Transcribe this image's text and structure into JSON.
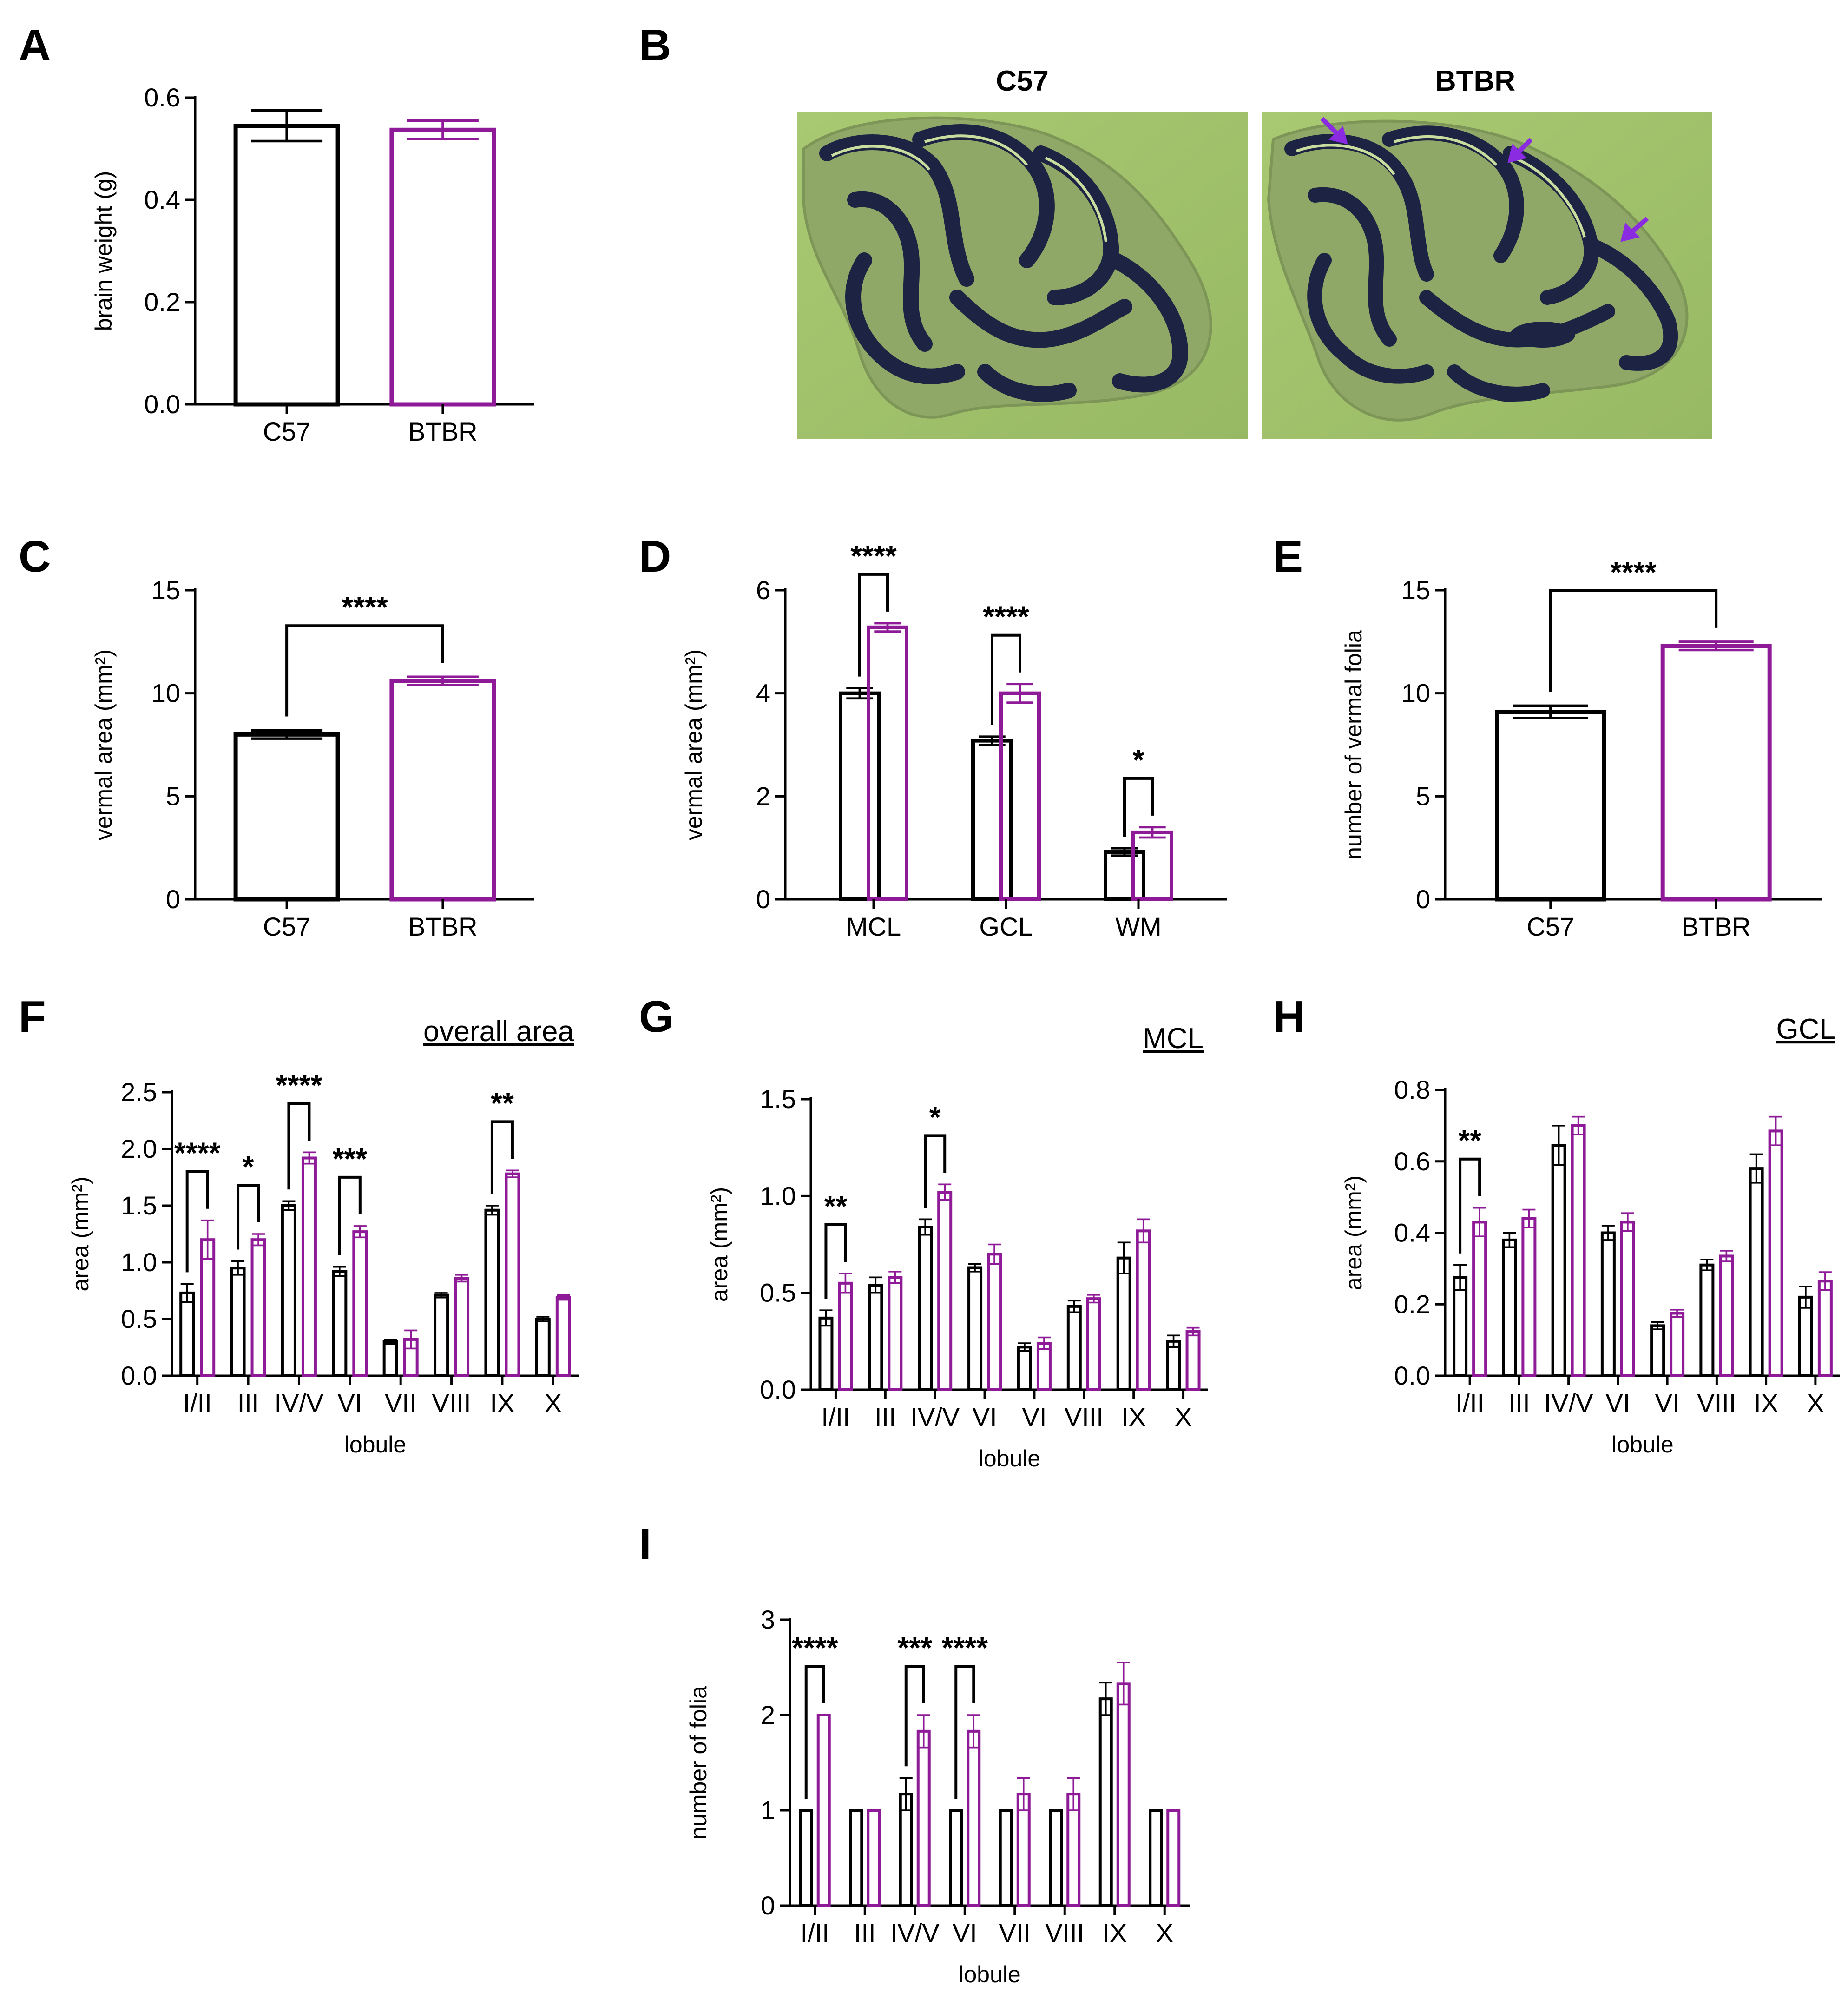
{
  "colors": {
    "c57": "#000000",
    "btbr": "#8e1a97",
    "arrow": "#8a2be2",
    "tissue": "#a4c46e",
    "folia": "#1d2343"
  },
  "panels": {
    "A": {
      "letter": "A"
    },
    "B": {
      "letter": "B",
      "left_title": "C57",
      "right_title": "BTBR"
    },
    "C": {
      "letter": "C"
    },
    "D": {
      "letter": "D"
    },
    "E": {
      "letter": "E"
    },
    "F": {
      "letter": "F"
    },
    "G": {
      "letter": "G"
    },
    "H": {
      "letter": "H"
    },
    "I": {
      "letter": "I"
    }
  },
  "chart_data": [
    {
      "id": "A",
      "type": "bar",
      "categories": [
        "C57",
        "BTBR"
      ],
      "values": [
        0.545,
        0.537
      ],
      "errors": [
        0.03,
        0.018
      ],
      "ylabel": "brain weight (g)",
      "ylim": [
        0,
        0.6
      ],
      "yticks": [
        "0.0",
        "0.2",
        "0.4",
        "0.6"
      ],
      "brackets": []
    },
    {
      "id": "C",
      "type": "bar",
      "categories": [
        "C57",
        "BTBR"
      ],
      "values": [
        8.0,
        10.6
      ],
      "errors": [
        0.2,
        0.2
      ],
      "ylabel": "vermal area (mm²)",
      "ylim": [
        0,
        15
      ],
      "yticks": [
        "0",
        "5",
        "10",
        "15"
      ],
      "brackets": [
        {
          "from": 0,
          "to": 1,
          "label": "****"
        }
      ]
    },
    {
      "id": "D",
      "type": "bar",
      "categories": [
        "MCL",
        "GCL",
        "WM"
      ],
      "series": [
        {
          "values": [
            4.0,
            3.08,
            0.92
          ],
          "errors": [
            0.1,
            0.08,
            0.07
          ]
        },
        {
          "values": [
            5.28,
            4.0,
            1.3
          ],
          "errors": [
            0.08,
            0.18,
            0.1
          ]
        }
      ],
      "ylabel": "vermal area (mm²)",
      "ylim": [
        0,
        6
      ],
      "yticks": [
        "0",
        "2",
        "4",
        "6"
      ],
      "brackets": [
        {
          "cat": 0,
          "label": "****"
        },
        {
          "cat": 1,
          "label": "****"
        },
        {
          "cat": 2,
          "label": "*"
        }
      ]
    },
    {
      "id": "E",
      "type": "bar",
      "categories": [
        "C57",
        "BTBR"
      ],
      "values": [
        9.1,
        12.3
      ],
      "errors": [
        0.3,
        0.2
      ],
      "ylabel": "number of vermal folia",
      "ylim": [
        0,
        15
      ],
      "yticks": [
        "0",
        "5",
        "10",
        "15"
      ],
      "brackets": [
        {
          "from": 0,
          "to": 1,
          "label": "****"
        }
      ]
    },
    {
      "id": "F",
      "type": "bar",
      "title": "overall area",
      "categories": [
        "I/II",
        "III",
        "IV/V",
        "VI",
        "VII",
        "VIII",
        "IX",
        "X"
      ],
      "series": [
        {
          "values": [
            0.73,
            0.95,
            1.5,
            0.92,
            0.3,
            0.71,
            1.46,
            0.5
          ],
          "errors": [
            0.08,
            0.06,
            0.04,
            0.04,
            0.02,
            0.02,
            0.04,
            0.02
          ]
        },
        {
          "values": [
            1.2,
            1.2,
            1.92,
            1.27,
            0.32,
            0.86,
            1.78,
            0.69
          ],
          "errors": [
            0.17,
            0.05,
            0.05,
            0.05,
            0.08,
            0.03,
            0.03,
            0.02
          ]
        }
      ],
      "ylabel": "area (mm²)",
      "xlabel": "lobule",
      "ylim": [
        0,
        2.5
      ],
      "yticks": [
        "0.0",
        "0.5",
        "1.0",
        "1.5",
        "2.0",
        "2.5"
      ],
      "brackets": [
        {
          "cat": 0,
          "label": "****"
        },
        {
          "cat": 1,
          "label": "*"
        },
        {
          "cat": 2,
          "label": "****"
        },
        {
          "cat": 3,
          "label": "***"
        },
        {
          "cat": 6,
          "label": "**"
        }
      ]
    },
    {
      "id": "G",
      "type": "bar",
      "title": "MCL",
      "categories": [
        "I/II",
        "III",
        "IV/V",
        "VI",
        "VI",
        "VIII",
        "IX",
        "X"
      ],
      "series": [
        {
          "values": [
            0.37,
            0.54,
            0.84,
            0.63,
            0.22,
            0.43,
            0.68,
            0.25
          ],
          "errors": [
            0.04,
            0.04,
            0.04,
            0.02,
            0.02,
            0.03,
            0.08,
            0.03
          ]
        },
        {
          "values": [
            0.55,
            0.58,
            1.02,
            0.7,
            0.24,
            0.47,
            0.82,
            0.3
          ],
          "errors": [
            0.05,
            0.03,
            0.04,
            0.05,
            0.03,
            0.02,
            0.06,
            0.02
          ]
        }
      ],
      "ylabel": "area (mm²)",
      "xlabel": "lobule",
      "ylim": [
        0,
        1.5
      ],
      "yticks": [
        "0.0",
        "0.5",
        "1.0",
        "1.5"
      ],
      "brackets": [
        {
          "cat": 0,
          "label": "**"
        },
        {
          "cat": 2,
          "label": "*"
        }
      ]
    },
    {
      "id": "H",
      "type": "bar",
      "title": "GCL",
      "categories": [
        "I/II",
        "III",
        "IV/V",
        "VI",
        "VI",
        "VIII",
        "IX",
        "X"
      ],
      "series": [
        {
          "values": [
            0.275,
            0.38,
            0.645,
            0.4,
            0.14,
            0.31,
            0.58,
            0.22
          ],
          "errors": [
            0.035,
            0.02,
            0.055,
            0.02,
            0.01,
            0.015,
            0.04,
            0.03
          ]
        },
        {
          "values": [
            0.43,
            0.44,
            0.7,
            0.43,
            0.175,
            0.335,
            0.685,
            0.265
          ],
          "errors": [
            0.04,
            0.025,
            0.025,
            0.025,
            0.01,
            0.015,
            0.04,
            0.025
          ]
        }
      ],
      "ylabel": "area (mm²)",
      "xlabel": "lobule",
      "ylim": [
        0,
        0.8
      ],
      "yticks": [
        "0.0",
        "0.2",
        "0.4",
        "0.6",
        "0.8"
      ],
      "brackets": [
        {
          "cat": 0,
          "label": "**"
        }
      ]
    },
    {
      "id": "I",
      "type": "bar",
      "categories": [
        "I/II",
        "III",
        "IV/V",
        "VI",
        "VII",
        "VIII",
        "IX",
        "X"
      ],
      "series": [
        {
          "values": [
            1,
            1,
            1.17,
            1,
            1,
            1,
            2.17,
            1
          ],
          "errors": [
            0,
            0,
            0.17,
            0,
            0,
            0,
            0.17,
            0
          ]
        },
        {
          "values": [
            2,
            1,
            1.83,
            1.83,
            1.17,
            1.17,
            2.33,
            1
          ],
          "errors": [
            0,
            0,
            0.17,
            0.17,
            0.17,
            0.17,
            0.22,
            0
          ]
        }
      ],
      "ylabel": "number of folia",
      "xlabel": "lobule",
      "ylim": [
        0,
        3
      ],
      "yticks": [
        "0",
        "1",
        "2",
        "3"
      ],
      "brackets": [
        {
          "cat": 0,
          "label": "****"
        },
        {
          "cat": 2,
          "label": "***"
        },
        {
          "cat": 3,
          "label": "****"
        }
      ]
    }
  ]
}
